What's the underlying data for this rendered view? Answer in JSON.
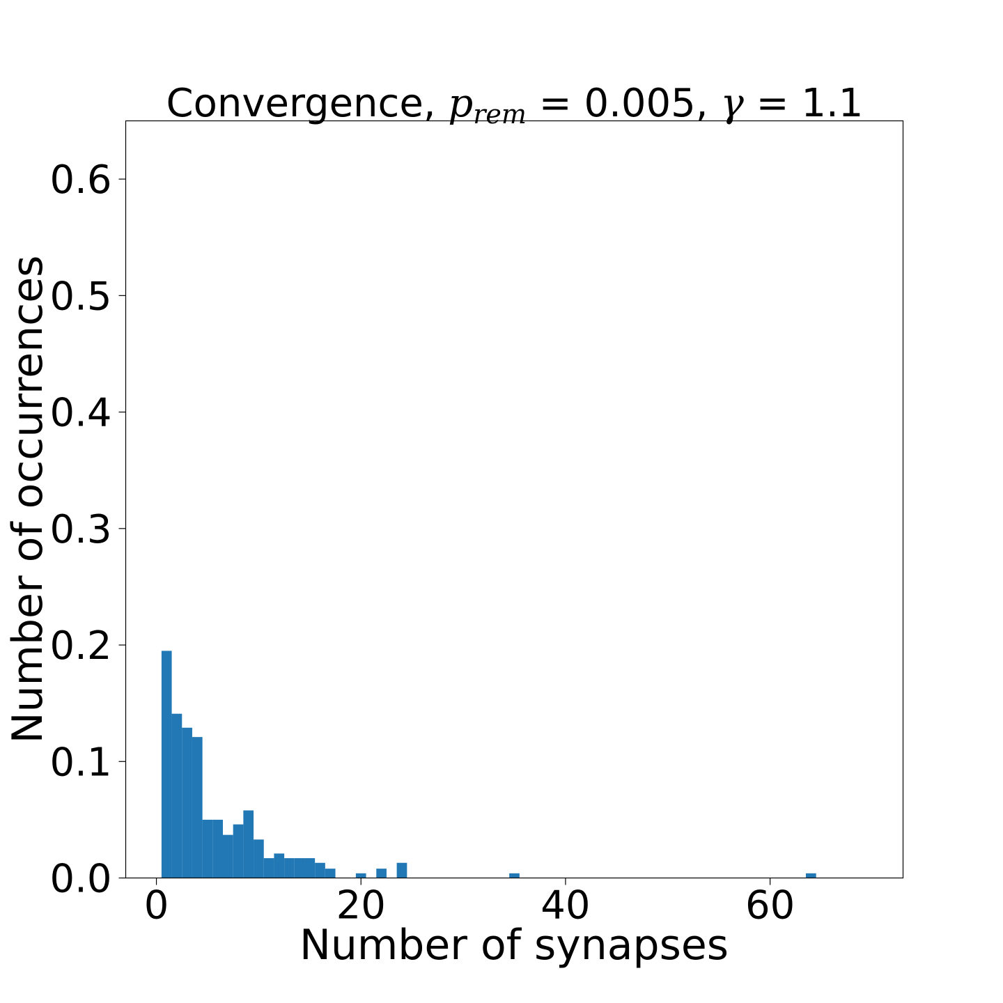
{
  "chart_data": {
    "type": "bar",
    "title_prefix": "Convergence, ",
    "title_p": "p",
    "title_p_sub": "rem",
    "title_eq1": " = 0.005, ",
    "title_gamma": "γ",
    "title_eq2": " = 1.1",
    "xlabel": "Number of synapses",
    "ylabel": "Number of occurrences",
    "xlim": [
      -3,
      73
    ],
    "ylim": [
      0,
      0.65
    ],
    "xticks": [
      0,
      20,
      40,
      60
    ],
    "xtick_labels": [
      "0",
      "20",
      "40",
      "60"
    ],
    "yticks": [
      0.0,
      0.1,
      0.2,
      0.3,
      0.4,
      0.5,
      0.6
    ],
    "ytick_labels": [
      "0.0",
      "0.1",
      "0.2",
      "0.3",
      "0.4",
      "0.5",
      "0.6"
    ],
    "bar_color": "#2178b4",
    "bin_width": 1,
    "bins": [
      {
        "x": 0.5,
        "value": 0.195
      },
      {
        "x": 1.5,
        "value": 0.141
      },
      {
        "x": 2.5,
        "value": 0.129
      },
      {
        "x": 3.5,
        "value": 0.121
      },
      {
        "x": 4.5,
        "value": 0.05
      },
      {
        "x": 5.5,
        "value": 0.05
      },
      {
        "x": 6.5,
        "value": 0.037
      },
      {
        "x": 7.5,
        "value": 0.046
      },
      {
        "x": 8.5,
        "value": 0.058
      },
      {
        "x": 9.5,
        "value": 0.033
      },
      {
        "x": 10.5,
        "value": 0.017
      },
      {
        "x": 11.5,
        "value": 0.021
      },
      {
        "x": 12.5,
        "value": 0.017
      },
      {
        "x": 13.5,
        "value": 0.017
      },
      {
        "x": 14.5,
        "value": 0.017
      },
      {
        "x": 15.5,
        "value": 0.013
      },
      {
        "x": 16.5,
        "value": 0.008
      },
      {
        "x": 19.5,
        "value": 0.004
      },
      {
        "x": 21.5,
        "value": 0.008
      },
      {
        "x": 23.5,
        "value": 0.013
      },
      {
        "x": 34.5,
        "value": 0.004
      },
      {
        "x": 63.5,
        "value": 0.004
      }
    ]
  }
}
